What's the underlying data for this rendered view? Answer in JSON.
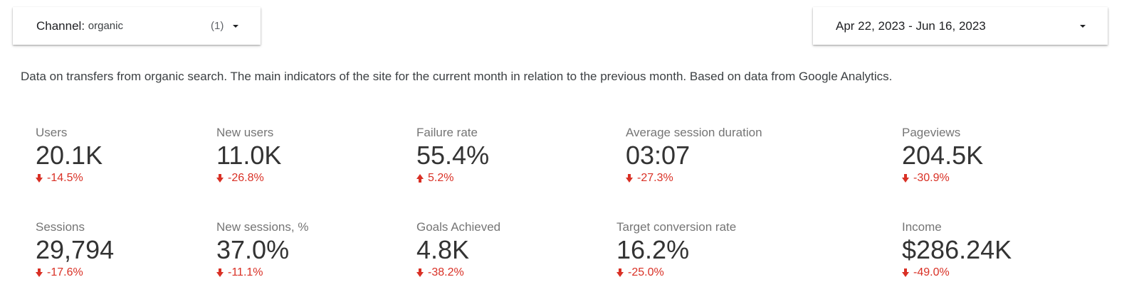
{
  "filters": {
    "channel_label": "Channel",
    "channel_value": "organic",
    "channel_count": "(1)",
    "date_range": "Apr 22, 2023 - Jun 16, 2023"
  },
  "description": "Data on transfers from organic search. The main indicators of the site for the current month in relation to the previous month. Based on data from Google Analytics.",
  "colors": {
    "negative": "#d93025",
    "value_text": "#333333",
    "label_text": "#757575"
  },
  "metrics": [
    {
      "label": "Users",
      "value": "20.1K",
      "change": "-14.5%",
      "direction": "down",
      "icon": "arrow-down-icon"
    },
    {
      "label": "New users",
      "value": "11.0K",
      "change": "-26.8%",
      "direction": "down",
      "icon": "arrow-down-icon"
    },
    {
      "label": "Failure rate",
      "value": "55.4%",
      "change": "5.2%",
      "direction": "up",
      "icon": "arrow-up-icon"
    },
    {
      "label": "Average session duration",
      "value": "03:07",
      "change": "-27.3%",
      "direction": "down",
      "icon": "arrow-down-icon"
    },
    {
      "label": "Pageviews",
      "value": "204.5K",
      "change": "-30.9%",
      "direction": "down",
      "icon": "arrow-down-icon"
    },
    {
      "label": "Sessions",
      "value": "29,794",
      "change": "-17.6%",
      "direction": "down",
      "icon": "arrow-down-icon"
    },
    {
      "label": "New sessions, %",
      "value": "37.0%",
      "change": "-11.1%",
      "direction": "down",
      "icon": "arrow-down-icon"
    },
    {
      "label": "Goals Achieved",
      "value": "4.8K",
      "change": "-38.2%",
      "direction": "down",
      "icon": "arrow-down-icon"
    },
    {
      "label": "Target conversion rate",
      "value": "16.2%",
      "change": "-25.0%",
      "direction": "down",
      "icon": "arrow-down-icon"
    },
    {
      "label": "Income",
      "value": "$286.24K",
      "change": "-49.0%",
      "direction": "down",
      "icon": "arrow-down-icon"
    }
  ]
}
